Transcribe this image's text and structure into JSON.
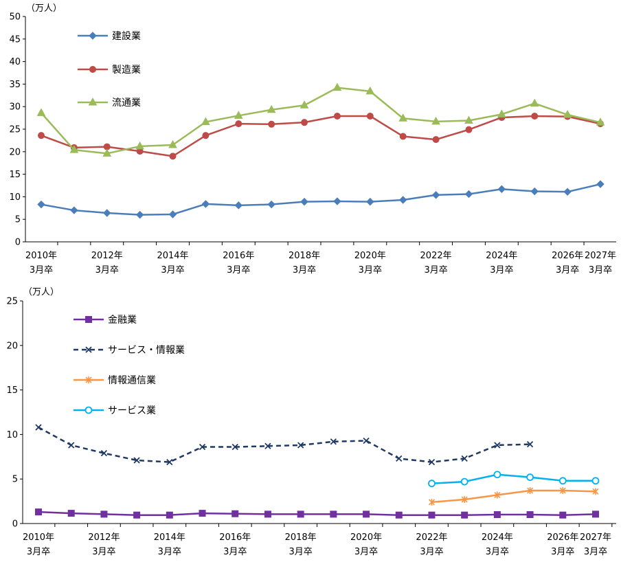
{
  "chart_data": [
    {
      "type": "line",
      "unit_label": "（万人）",
      "ylim": [
        0,
        50
      ],
      "yticks": [
        0,
        5,
        10,
        15,
        20,
        25,
        30,
        35,
        40,
        45,
        50
      ],
      "x": [
        "2010年3月卒",
        "2011年3月卒",
        "2012年3月卒",
        "2013年3月卒",
        "2014年3月卒",
        "2015年3月卒",
        "2016年3月卒",
        "2017年3月卒",
        "2018年3月卒",
        "2019年3月卒",
        "2020年3月卒",
        "2021年3月卒",
        "2022年3月卒",
        "2023年3月卒",
        "2024年3月卒",
        "2025年3月卒",
        "2026年3月卒",
        "2027年3月卒"
      ],
      "x_tick_labels": [
        {
          "i": 0,
          "year": "2010年",
          "sub": "3月卒"
        },
        {
          "i": 2,
          "year": "2012年",
          "sub": "3月卒"
        },
        {
          "i": 4,
          "year": "2014年",
          "sub": "3月卒"
        },
        {
          "i": 6,
          "year": "2016年",
          "sub": "3月卒"
        },
        {
          "i": 8,
          "year": "2018年",
          "sub": "3月卒"
        },
        {
          "i": 10,
          "year": "2020年",
          "sub": "3月卒"
        },
        {
          "i": 12,
          "year": "2022年",
          "sub": "3月卒"
        },
        {
          "i": 14,
          "year": "2024年",
          "sub": "3月卒"
        },
        {
          "i": 16,
          "year": "2026年",
          "sub": "3月卒"
        },
        {
          "i": 17,
          "year": "2027年",
          "sub": "3月卒"
        }
      ],
      "grid": false,
      "legend_position": "top-left",
      "series": [
        {
          "name": "建設業",
          "color": "#4a7ebb",
          "marker": "diamond",
          "dash": "solid",
          "values": [
            8.3,
            7.0,
            6.4,
            6.0,
            6.1,
            8.4,
            8.1,
            8.3,
            8.9,
            9.0,
            8.9,
            9.3,
            10.4,
            10.6,
            11.7,
            11.2,
            11.1,
            12.8
          ]
        },
        {
          "name": "製造業",
          "color": "#be4b48",
          "marker": "circle",
          "dash": "solid",
          "values": [
            23.6,
            20.9,
            21.1,
            20.1,
            19.0,
            23.6,
            26.2,
            26.1,
            26.5,
            27.9,
            27.9,
            23.4,
            22.7,
            24.9,
            27.6,
            27.9,
            27.8,
            26.2
          ]
        },
        {
          "name": "流通業",
          "color": "#9bbb59",
          "marker": "triangle",
          "dash": "solid",
          "values": [
            28.6,
            20.4,
            19.6,
            21.2,
            21.5,
            26.6,
            28.0,
            29.3,
            30.3,
            34.2,
            33.4,
            27.4,
            26.7,
            26.9,
            28.3,
            30.7,
            28.2,
            26.5
          ]
        }
      ]
    },
    {
      "type": "line",
      "unit_label": "（万人）",
      "ylim": [
        0,
        25
      ],
      "yticks": [
        0,
        5,
        10,
        15,
        20,
        25
      ],
      "x": [
        "2010年3月卒",
        "2011年3月卒",
        "2012年3月卒",
        "2013年3月卒",
        "2014年3月卒",
        "2015年3月卒",
        "2016年3月卒",
        "2017年3月卒",
        "2018年3月卒",
        "2019年3月卒",
        "2020年3月卒",
        "2021年3月卒",
        "2022年3月卒",
        "2023年3月卒",
        "2024年3月卒",
        "2025年3月卒",
        "2026年3月卒",
        "2027年3月卒"
      ],
      "x_tick_labels": [
        {
          "i": 0,
          "year": "2010年",
          "sub": "3月卒"
        },
        {
          "i": 2,
          "year": "2012年",
          "sub": "3月卒"
        },
        {
          "i": 4,
          "year": "2014年",
          "sub": "3月卒"
        },
        {
          "i": 6,
          "year": "2016年",
          "sub": "3月卒"
        },
        {
          "i": 8,
          "year": "2018年",
          "sub": "3月卒"
        },
        {
          "i": 10,
          "year": "2020年",
          "sub": "3月卒"
        },
        {
          "i": 12,
          "year": "2022年",
          "sub": "3月卒"
        },
        {
          "i": 14,
          "year": "2024年",
          "sub": "3月卒"
        },
        {
          "i": 16,
          "year": "2026年",
          "sub": "3月卒"
        },
        {
          "i": 17,
          "year": "2027年",
          "sub": "3月卒"
        }
      ],
      "grid": false,
      "legend_position": "top-left",
      "series": [
        {
          "name": "金融業",
          "color": "#7030a0",
          "marker": "square",
          "dash": "solid",
          "values": [
            1.3,
            1.15,
            1.05,
            0.95,
            0.95,
            1.15,
            1.1,
            1.05,
            1.05,
            1.05,
            1.05,
            0.95,
            0.95,
            0.95,
            1.0,
            1.0,
            0.95,
            1.05
          ]
        },
        {
          "name": "サービス・情報業",
          "color": "#1f3864",
          "marker": "x",
          "dash": "dashed",
          "values": [
            10.8,
            8.8,
            7.9,
            7.1,
            6.9,
            8.6,
            8.6,
            8.7,
            8.8,
            9.2,
            9.3,
            7.3,
            6.9,
            7.3,
            8.8,
            8.9,
            null,
            null
          ]
        },
        {
          "name": "情報通信業",
          "color": "#f79646",
          "marker": "star",
          "dash": "solid",
          "values": [
            null,
            null,
            null,
            null,
            null,
            null,
            null,
            null,
            null,
            null,
            null,
            null,
            2.4,
            2.7,
            3.2,
            3.7,
            3.7,
            3.6
          ]
        },
        {
          "name": "サービス業",
          "color": "#00b0f0",
          "marker": "open-circle",
          "dash": "solid",
          "values": [
            null,
            null,
            null,
            null,
            null,
            null,
            null,
            null,
            null,
            null,
            null,
            null,
            4.5,
            4.7,
            5.5,
            5.2,
            4.8,
            4.8
          ]
        }
      ]
    }
  ]
}
